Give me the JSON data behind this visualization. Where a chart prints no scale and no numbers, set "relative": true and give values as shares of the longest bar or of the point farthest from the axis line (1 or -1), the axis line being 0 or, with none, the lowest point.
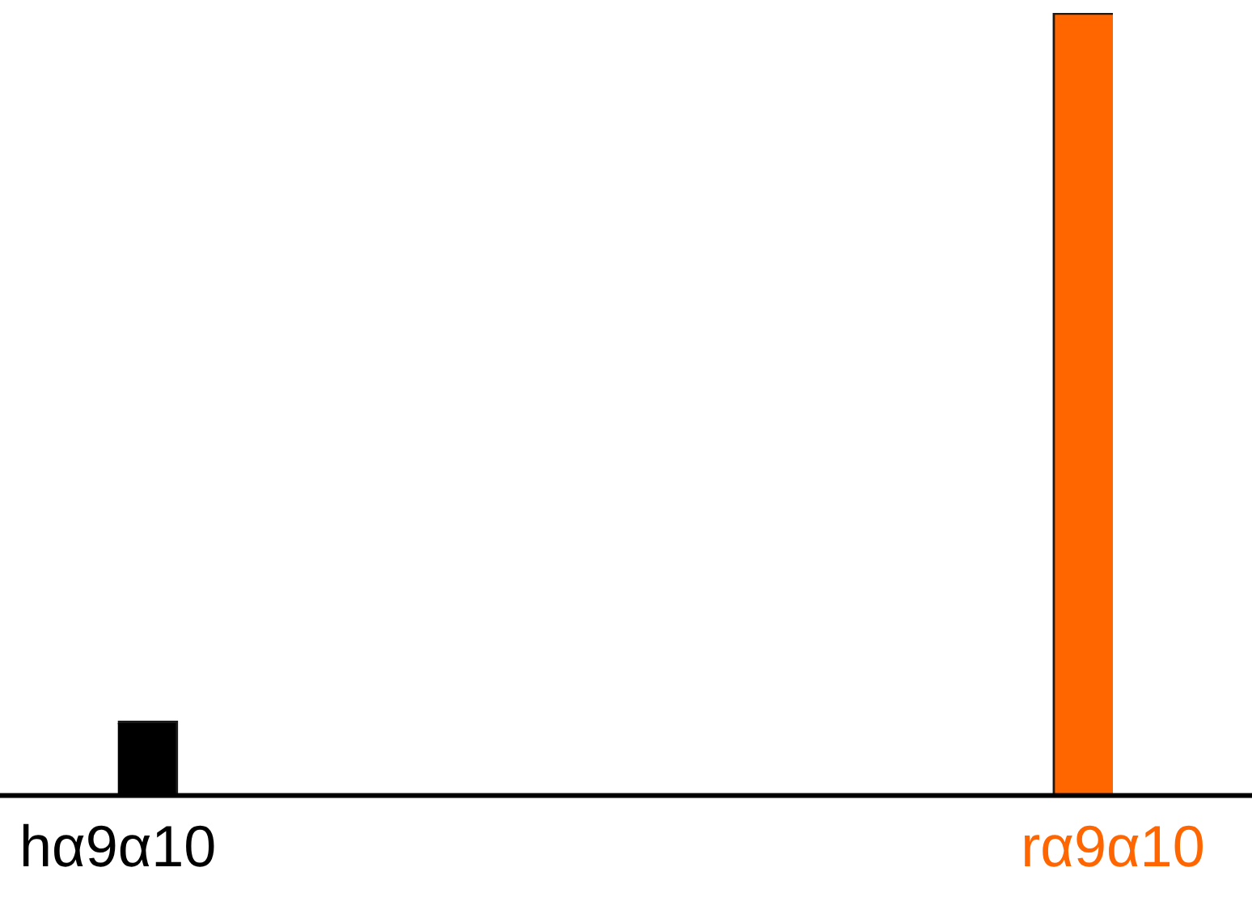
{
  "chart_data": {
    "type": "bar",
    "relative": true,
    "categories": [
      "hα9α10",
      "rα9α10"
    ],
    "values": [
      0.095,
      1
    ],
    "colors": [
      "#000000",
      "#ff6600"
    ],
    "grid": false,
    "legend": false
  }
}
